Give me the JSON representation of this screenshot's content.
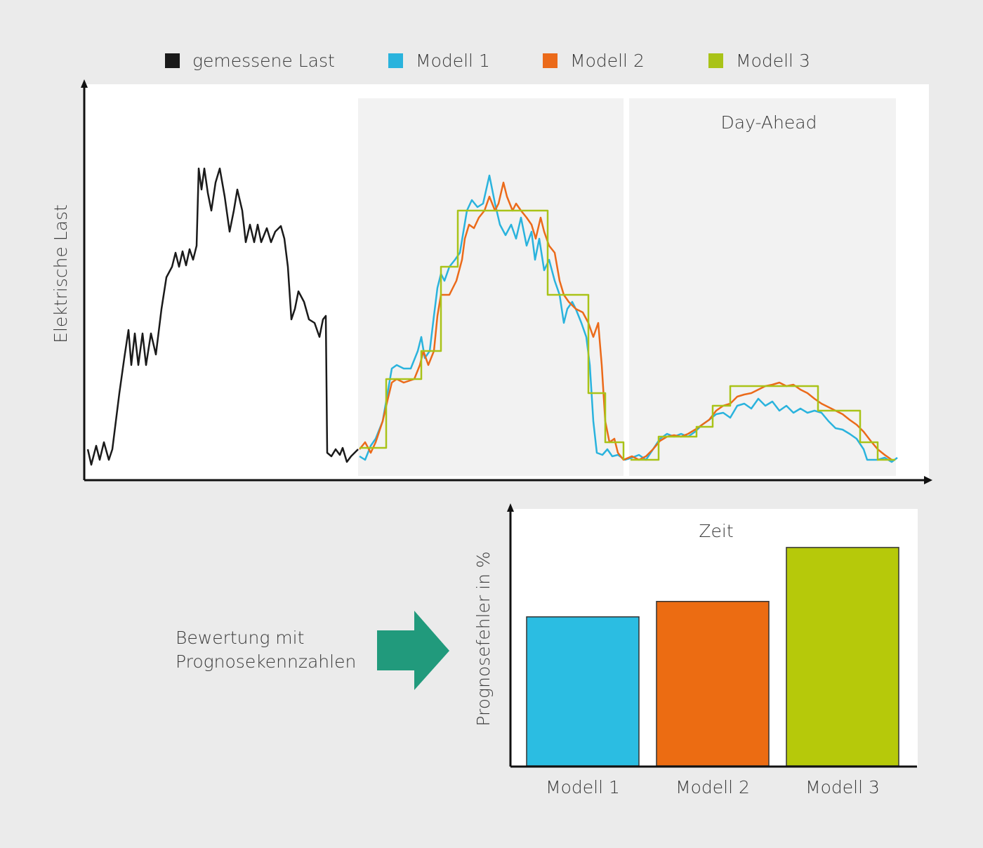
{
  "legend": {
    "items": [
      {
        "label": "gemessene Last",
        "color": "#1a1a1a"
      },
      {
        "label": "Modell 1",
        "color": "#2ab3dd"
      },
      {
        "label": "Modell 2",
        "color": "#eb6a1a"
      },
      {
        "label": "Modell 3",
        "color": "#a9c318"
      }
    ]
  },
  "load_chart": {
    "y_label": "Elektrische Last",
    "panel_label": "Day-Ahead",
    "x_label": "Zeit"
  },
  "evaluation": {
    "lines": [
      "Bewertung mit",
      "Prognosekennzahlen"
    ]
  },
  "chart_data": {
    "type": "bar",
    "y_label": "Prognosefehler in %",
    "categories": [
      "Modell 1",
      "Modell 2",
      "Modell 3"
    ],
    "values": [
      58,
      64,
      85
    ],
    "colors": [
      "#2bbde2",
      "#ec6c12",
      "#b6c90a"
    ],
    "ylim": [
      0,
      100
    ]
  }
}
